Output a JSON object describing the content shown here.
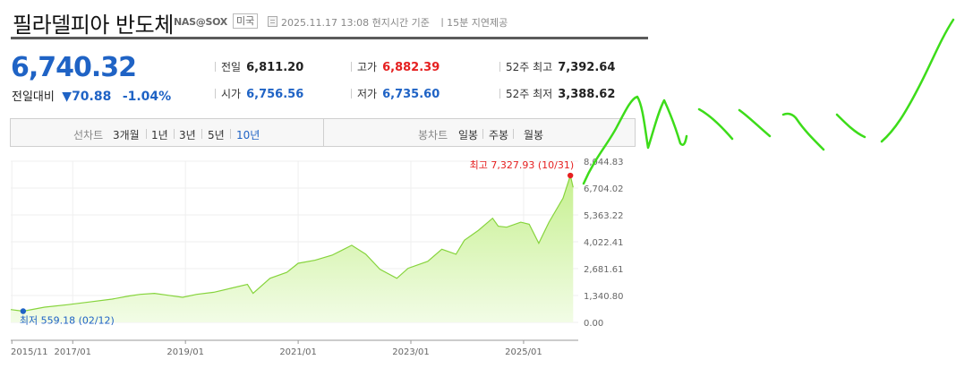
{
  "header": {
    "title": "필라델피아 반도체",
    "code": "NAS@SOX",
    "country": "미국",
    "timestamp": "2025.11.17 13:08 현지시간 기준",
    "delay": "ㅣ15분 지연제공"
  },
  "quote": {
    "price": "6,740.32",
    "change_label": "전일대비",
    "change_value": "▼70.88",
    "change_pct": "-1.04%"
  },
  "stats": {
    "prev_close": {
      "label": "전일",
      "value": "6,811.20"
    },
    "open": {
      "label": "시가",
      "value": "6,756.56"
    },
    "high": {
      "label": "고가",
      "value": "6,882.39"
    },
    "low": {
      "label": "저가",
      "value": "6,735.60"
    },
    "high52": {
      "label": "52주 최고",
      "value": "7,392.64"
    },
    "low52": {
      "label": "52주 최저",
      "value": "3,388.62"
    }
  },
  "tabs": {
    "line_label": "선차트",
    "line_tabs": [
      "3개월",
      "1년",
      "3년",
      "5년",
      "10년"
    ],
    "line_active": "10년",
    "candle_label": "봉차트",
    "candle_tabs": [
      "일봉",
      "주봉",
      "월봉"
    ]
  },
  "colors": {
    "up": "#e52020",
    "down": "#1f63c5",
    "line": "#86d43c",
    "fill_top": "#c6f08f",
    "fill_bottom": "#f2fce6",
    "overlay": "#3ddc1a"
  },
  "chart_data": {
    "type": "area",
    "x_ticks": [
      "2015/11",
      "2017/01",
      "2019/01",
      "2021/01",
      "2023/01",
      "2025/01"
    ],
    "x_tick_values": [
      2015.92,
      2017.0,
      2019.0,
      2021.0,
      2023.0,
      2025.0
    ],
    "y_ticks": [
      "0.00",
      "1,340.80",
      "2,681.61",
      "4,022.41",
      "5,363.22",
      "6,704.02",
      "8,044.83"
    ],
    "ylim": [
      0,
      8044.83
    ],
    "xlim": [
      2015.9,
      2025.97
    ],
    "grid": true,
    "max_annotation": "최고 7,327.93 (10/31)",
    "min_annotation": "최저 559.18 (02/12)",
    "x": [
      2015.9,
      2016.12,
      2016.5,
      2016.9,
      2017.3,
      2017.7,
      2018.0,
      2018.2,
      2018.45,
      2018.7,
      2018.95,
      2019.2,
      2019.5,
      2019.8,
      2020.1,
      2020.2,
      2020.5,
      2020.8,
      2021.0,
      2021.3,
      2021.6,
      2021.95,
      2022.2,
      2022.45,
      2022.75,
      2022.95,
      2023.3,
      2023.55,
      2023.8,
      2023.95,
      2024.2,
      2024.45,
      2024.55,
      2024.7,
      2024.95,
      2025.1,
      2025.27,
      2025.45,
      2025.7,
      2025.83,
      2025.88
    ],
    "y": [
      640,
      559.18,
      760,
      880,
      1020,
      1160,
      1320,
      1400,
      1450,
      1350,
      1250,
      1400,
      1500,
      1700,
      1900,
      1450,
      2200,
      2500,
      2950,
      3100,
      3350,
      3850,
      3400,
      2650,
      2200,
      2700,
      3050,
      3650,
      3400,
      4100,
      4600,
      5200,
      4800,
      4750,
      5000,
      4900,
      3950,
      5000,
      6200,
      7327.93,
      6740.32
    ],
    "max_point": {
      "x": 2025.83,
      "y": 7327.93
    },
    "min_point": {
      "x": 2016.12,
      "y": 559.18
    }
  }
}
